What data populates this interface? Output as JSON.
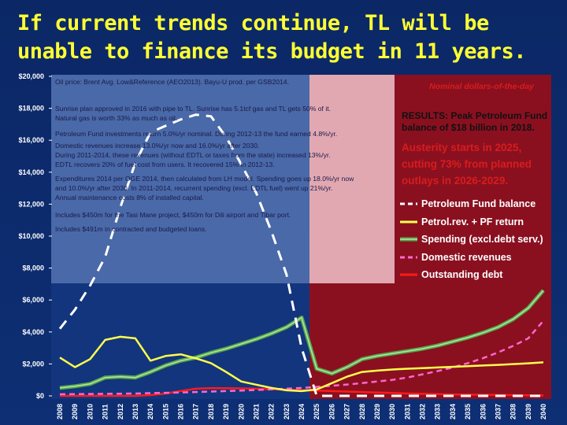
{
  "slide": {
    "title": "If current trends continue, TL will be unable to finance its budget in 11 years."
  },
  "colors": {
    "background": "#0d2a6b",
    "title": "#ffff33",
    "left_panel": "#4f6fae",
    "right_panel": "#8a1020",
    "pink_box": "#e8b4bc",
    "petroleum_fund": "#ffffff",
    "petrol_rev": "#ffff4d",
    "spending": "#55a84a",
    "domestic": "#ff66cc",
    "debt": "#ff1a1a",
    "austerity_text": "#d91c1c"
  },
  "notes": [
    "Oil price: Brent Avg. Low&Reference (AEO2013).   Bayu-U prod. per GSB2014.",
    "Sunrise plan approved in 2016 with pipe to TL. Sunrise has 5.1tcf gas and TL gets 50% of it.",
    "Natural gas is worth 33% as much as oil.",
    "Petroleum Fund investments return 5.0%/yr nominal.   During 2012-13 the fund earned 4.8%/yr.",
    "Domestic revenues increase 13.0%/yr now and 16.0%/yr after 2030.",
    "During 2011-2014, these revenues (without EDTL or taxes from the state) increased 13%/yr.",
    "EDTL recovers 20% of fuel cost from users. It recovered 15% in 2012-13.",
    "Expenditures 2014 per OGE 2014, then calculated from LH model. Spending goes up 18.0%/yr now",
    "and 10.0%/yr after 2030. In 2011-2014, recurrent spending (excl. EDTL fuel) went up 21%/yr.",
    "Annual maintenance costs 8% of installed capital.",
    "Includes $450m for the Tasi Mane project, $450m for Dili airport and Tibar port.",
    "Includes $491m in contracted and budgeted loans."
  ],
  "annotations": {
    "nominal": "Nominal dollars-of-the-day",
    "results_line1": "RESULTS: Peak Petroleum Fund",
    "results_line2": "balance of $18 billion in 2018.",
    "austerity_line1": "Austerity starts in 2025,",
    "austerity_line2": "cutting 73% from planned",
    "austerity_line3": "outlays in 2026-2029."
  },
  "chart_data": {
    "type": "line",
    "title": "",
    "xlabel": "",
    "ylabel": "",
    "ylim": [
      0,
      20000
    ],
    "y_ticks": [
      "$0",
      "$2,000",
      "$4,000",
      "$6,000",
      "$8,000",
      "$10,000",
      "$12,000",
      "$14,000",
      "$16,000",
      "$18,000",
      "$20,000"
    ],
    "x": [
      "2008",
      "2009",
      "2010",
      "2011",
      "2012",
      "2013",
      "2014",
      "2015",
      "2016",
      "2017",
      "2018",
      "2019",
      "2020",
      "2021",
      "2022",
      "2023",
      "2024",
      "2025",
      "2026",
      "2027",
      "2028",
      "2029",
      "2030",
      "2031",
      "2032",
      "2033",
      "2034",
      "2035",
      "2036",
      "2037",
      "2038",
      "2039",
      "2040"
    ],
    "series": [
      {
        "name": "Petroleum Fund balance",
        "color": "#ffffff",
        "style": "dashed",
        "values": [
          4200,
          5400,
          6900,
          8700,
          11800,
          14600,
          16500,
          16900,
          17300,
          17600,
          17500,
          16200,
          14500,
          12700,
          10300,
          7600,
          3000,
          0,
          0,
          0,
          0,
          0,
          0,
          0,
          0,
          0,
          0,
          0,
          0,
          0,
          0,
          0,
          0
        ]
      },
      {
        "name": "Petrol.rev. + PF return",
        "color": "#ffff4d",
        "style": "solid",
        "values": [
          2400,
          1800,
          2300,
          3500,
          3700,
          3600,
          2200,
          2500,
          2600,
          2350,
          2050,
          1500,
          900,
          700,
          500,
          350,
          300,
          400,
          800,
          1200,
          1500,
          1580,
          1650,
          1700,
          1740,
          1780,
          1820,
          1860,
          1900,
          1940,
          1990,
          2040,
          2100
        ]
      },
      {
        "name": "Spending (excl.debt serv.)",
        "color": "#55a84a",
        "style": "solid",
        "values": [
          500,
          600,
          750,
          1150,
          1200,
          1150,
          1500,
          1900,
          2200,
          2400,
          2700,
          2950,
          3250,
          3550,
          3900,
          4300,
          4900,
          1700,
          1400,
          1800,
          2300,
          2500,
          2650,
          2800,
          2950,
          3150,
          3400,
          3650,
          3950,
          4300,
          4800,
          5500,
          6600
        ]
      },
      {
        "name": "Domestic revenues",
        "color": "#ff66cc",
        "style": "dashed",
        "values": [
          100,
          110,
          120,
          130,
          140,
          150,
          170,
          190,
          210,
          240,
          270,
          300,
          330,
          370,
          410,
          450,
          500,
          560,
          630,
          710,
          800,
          900,
          1000,
          1150,
          1350,
          1550,
          1780,
          2050,
          2360,
          2720,
          3130,
          3600,
          4700
        ]
      },
      {
        "name": "Outstanding debt",
        "color": "#ff1a1a",
        "style": "solid",
        "values": [
          0,
          0,
          0,
          0,
          0,
          0,
          50,
          150,
          300,
          450,
          490,
          480,
          470,
          450,
          420,
          390,
          360,
          330,
          300,
          270,
          240,
          210,
          180,
          150,
          130,
          110,
          90,
          80,
          70,
          60,
          50,
          40,
          30
        ]
      }
    ],
    "legend_position": "right"
  }
}
